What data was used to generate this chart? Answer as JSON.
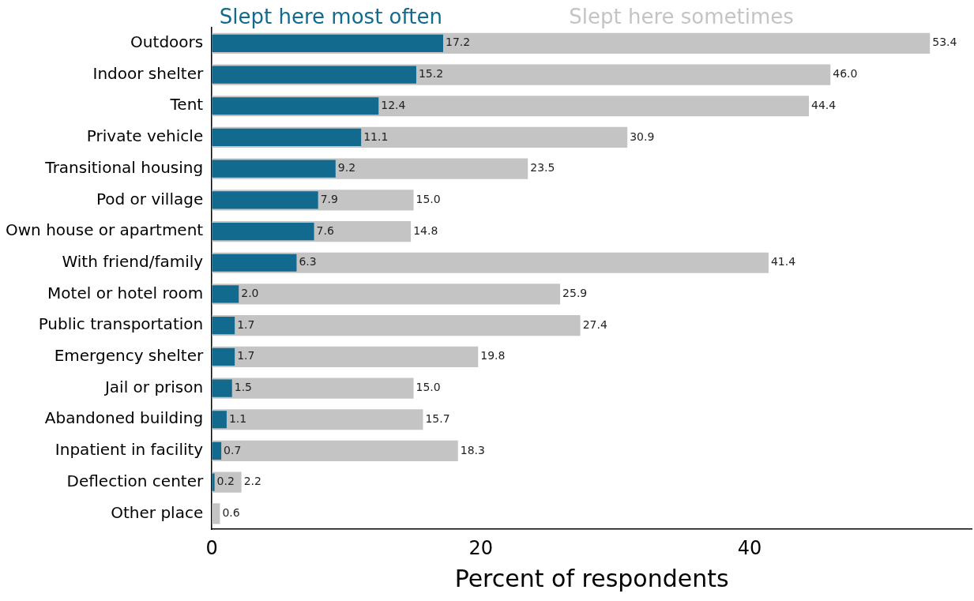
{
  "chart_data": {
    "type": "bar",
    "orientation": "horizontal",
    "xlabel": "Percent of respondents",
    "categories": [
      "Outdoors",
      "Indoor shelter",
      "Tent",
      "Private vehicle",
      "Transitional housing",
      "Pod or village",
      "Own house or apartment",
      "With friend/family",
      "Motel or hotel room",
      "Public transportation",
      "Emergency shelter",
      "Jail or prison",
      "Abandoned building",
      "Inpatient in facility",
      "Deflection center",
      "Other place"
    ],
    "series": [
      {
        "name": "Slept here most often",
        "color": "#126a8e",
        "values": [
          17.2,
          15.2,
          12.4,
          11.1,
          9.2,
          7.9,
          7.6,
          6.3,
          2.0,
          1.7,
          1.7,
          1.5,
          1.1,
          0.7,
          0.2,
          null
        ],
        "value_labels": [
          "17.2",
          "15.2",
          "12.4",
          "11.1",
          "9.2",
          "7.9",
          "7.6",
          "6.3",
          "2.0",
          "1.7",
          "1.7",
          "1.5",
          "1.1",
          "0.7",
          "0.2",
          null
        ]
      },
      {
        "name": "Slept here sometimes",
        "color": "#c4c4c4",
        "values": [
          53.4,
          46.0,
          44.4,
          30.9,
          23.5,
          15.0,
          14.8,
          41.4,
          25.9,
          27.4,
          19.8,
          15.0,
          15.7,
          18.3,
          2.2,
          0.6
        ],
        "value_labels": [
          "53.4",
          "46.0",
          "44.4",
          "30.9",
          "23.5",
          "15.0",
          "14.8",
          "41.4",
          "25.9",
          "27.4",
          "19.8",
          "15.0",
          "15.7",
          "18.3",
          "2.2",
          "0.6"
        ]
      }
    ],
    "xlim": [
      0,
      56.5
    ],
    "xticks": [
      0,
      20,
      40
    ],
    "grid": false,
    "legend": false
  }
}
